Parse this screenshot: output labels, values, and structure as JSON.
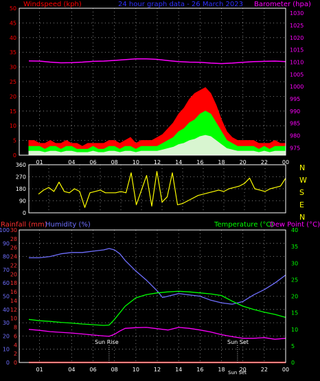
{
  "colors": {
    "wind_speed": "#ff0000",
    "wind_gust": "#00ff00",
    "wind_low": "#d8f5d0",
    "barometer": "#ff00ff",
    "direction": "#ffff00",
    "rainfall": "#ff0000",
    "humidity": "#6f6fff",
    "temperature": "#00ff00",
    "dewpoint": "#ff00ff",
    "rain_axis": "#ff3030",
    "hum_axis": "#6f6fff",
    "temp_axis": "#00ff00",
    "grid": "#a0a0a0",
    "frame": "#ffffff",
    "ticks": "#ffffff"
  },
  "header": {
    "windspeed_label": "Windspeed (kph)",
    "title": "24 hour graph data - 26 March 2023",
    "barometer_label": "Barometer (hpa)"
  },
  "bottom_header": {
    "rainfall_label": "Rainfall (mm)",
    "humidity_label": "Humidity (%)",
    "temperature_label": "Temperature (°C)",
    "dewpoint_label": "Dew Point (°C)"
  },
  "compass": [
    "N",
    "W",
    "S",
    "E",
    "N"
  ],
  "annotations": {
    "sunrise": "Sun Rise",
    "sunset": "Sun Set",
    "sunset_axis": "Sun Set"
  },
  "chart_data": [
    {
      "type": "line",
      "name": "wind-barometer",
      "x_ticks": [
        "01",
        "04",
        "06",
        "08",
        "10",
        "12",
        "14",
        "16",
        "18",
        "20",
        "22",
        "00"
      ],
      "y_left": {
        "ticks": [
          "0",
          "5",
          "10",
          "15",
          "20",
          "25",
          "30",
          "35",
          "40",
          "45",
          "50"
        ],
        "ylim": [
          0,
          50
        ]
      },
      "y_right": {
        "ticks": [
          "975",
          "980",
          "985",
          "990",
          "995",
          "1000",
          "1005",
          "1010",
          "1015",
          "1020",
          "1025",
          "1030"
        ],
        "ylim": [
          972,
          1032
        ]
      },
      "series": [
        {
          "key": "wind_speed",
          "x": [
            0,
            0.5,
            1,
            1.5,
            2,
            2.5,
            3,
            3.5,
            4,
            4.5,
            5,
            5.5,
            6,
            6.5,
            7,
            7.5,
            8,
            8.5,
            9,
            9.5,
            10,
            10.5,
            11,
            11.5,
            12,
            12.5,
            13,
            13.5,
            14,
            14.5,
            15,
            15.5,
            16,
            16.5,
            17,
            17.5,
            18,
            18.5,
            19,
            19.5,
            20,
            20.5,
            21,
            21.5,
            22,
            22.5,
            23,
            23.5,
            24
          ],
          "y": [
            5,
            5,
            4,
            4,
            5,
            4,
            4,
            5,
            4,
            4,
            3,
            4,
            4,
            4,
            4,
            5,
            5,
            4,
            5,
            6,
            4,
            5,
            5,
            5,
            6,
            7,
            9,
            11,
            14,
            16,
            19,
            21,
            22,
            23,
            21,
            17,
            12,
            8,
            6,
            5,
            5,
            5,
            5,
            4,
            4,
            4,
            5,
            4,
            4
          ]
        },
        {
          "key": "wind_gust",
          "x": [
            0,
            0.5,
            1,
            1.5,
            2,
            2.5,
            3,
            3.5,
            4,
            4.5,
            5,
            5.5,
            6,
            6.5,
            7,
            7.5,
            8,
            8.5,
            9,
            9.5,
            10,
            10.5,
            11,
            11.5,
            12,
            12.5,
            13,
            13.5,
            14,
            14.5,
            15,
            15.5,
            16,
            16.5,
            17,
            17.5,
            18,
            18.5,
            19,
            19.5,
            20,
            20.5,
            21,
            21.5,
            22,
            22.5,
            23,
            23.5,
            24
          ],
          "y": [
            3,
            3,
            3,
            2,
            3,
            3,
            2,
            3,
            3,
            2,
            2,
            2,
            3,
            2,
            2,
            3,
            3,
            2,
            3,
            3,
            2,
            3,
            3,
            3,
            3,
            4,
            5,
            6,
            8,
            9,
            11,
            12,
            14,
            15,
            14,
            11,
            8,
            5,
            4,
            3,
            3,
            3,
            3,
            2,
            3,
            2,
            3,
            3,
            3
          ]
        },
        {
          "key": "barometer",
          "x": [
            0,
            1,
            2,
            3,
            4,
            5,
            6,
            7,
            8,
            9,
            10,
            11,
            12,
            13,
            14,
            15,
            16,
            17,
            18,
            19,
            20,
            21,
            22,
            23,
            24
          ],
          "y": [
            1010.5,
            1010.4,
            1010.0,
            1009.7,
            1009.8,
            1010.0,
            1010.3,
            1010.4,
            1010.7,
            1011.0,
            1011.3,
            1011.3,
            1011.1,
            1010.6,
            1010.2,
            1010.0,
            1009.9,
            1009.6,
            1009.4,
            1009.6,
            1009.9,
            1010.2,
            1010.3,
            1010.4,
            1010.2
          ]
        }
      ]
    },
    {
      "type": "line",
      "name": "wind-direction",
      "y_ticks": [
        "0",
        "90",
        "180",
        "270",
        "360"
      ],
      "ylim": [
        0,
        360
      ],
      "series": [
        {
          "key": "direction",
          "x": [
            0,
            0.5,
            1,
            1.5,
            2,
            2.5,
            3,
            3.5,
            4,
            4.5,
            5,
            5.5,
            6,
            6.5,
            7,
            7.5,
            8,
            8.5,
            9,
            9.5,
            10,
            10.5,
            11,
            11.5,
            12,
            12.5,
            13,
            13.5,
            14,
            14.5,
            15,
            15.5,
            16,
            16.5,
            17,
            17.5,
            18,
            18.5,
            19,
            19.5,
            20,
            20.5,
            21,
            21.5,
            22,
            22.5,
            23,
            23.5,
            24
          ],
          "y": [
            140,
            170,
            190,
            160,
            230,
            160,
            150,
            180,
            160,
            40,
            150,
            160,
            170,
            150,
            150,
            150,
            160,
            150,
            300,
            60,
            170,
            280,
            50,
            310,
            80,
            120,
            300,
            60,
            70,
            90,
            110,
            130,
            140,
            150,
            160,
            170,
            160,
            180,
            190,
            200,
            220,
            260,
            180,
            170,
            160,
            180,
            190,
            200,
            260
          ]
        }
      ]
    },
    {
      "type": "line",
      "name": "temp-humidity-rain",
      "x_ticks": [
        "01",
        "04",
        "06",
        "08",
        "10",
        "12",
        "14",
        "16",
        "18",
        "20",
        "22",
        "00"
      ],
      "y_left_humidity": {
        "ticks": [
          "0",
          "10",
          "20",
          "30",
          "40",
          "50",
          "60",
          "70",
          "80",
          "90",
          "100"
        ],
        "ylim": [
          0,
          100
        ]
      },
      "y_left_rain": {
        "ticks": [
          "0",
          "2",
          "4",
          "6",
          "8",
          "10",
          "12",
          "14",
          "16",
          "18",
          "20",
          "22",
          "24",
          "26",
          "28",
          "30"
        ],
        "ylim": [
          0,
          30
        ]
      },
      "y_right_temp": {
        "ticks": [
          "0",
          "5",
          "10",
          "15",
          "20",
          "25",
          "30",
          "35",
          "40"
        ],
        "ylim": [
          0,
          40
        ]
      },
      "series": [
        {
          "key": "humidity",
          "x": [
            0,
            1,
            2,
            3,
            4,
            5,
            6,
            7,
            7.5,
            8,
            8.5,
            9,
            10,
            11,
            12,
            12.5,
            13,
            14,
            15,
            16,
            17,
            18,
            19,
            20,
            21,
            22,
            23,
            24
          ],
          "y": [
            79,
            79,
            80,
            82,
            83,
            83,
            84,
            85,
            86,
            85,
            82,
            77,
            69,
            62,
            54,
            49,
            50,
            52,
            51,
            50,
            47,
            45,
            44,
            46,
            51,
            55,
            60,
            66
          ]
        },
        {
          "key": "temperature",
          "x": [
            0,
            1,
            2,
            3,
            4,
            5,
            6,
            7,
            7.5,
            8,
            8.5,
            9,
            10,
            11,
            12,
            13,
            14,
            15,
            16,
            17,
            18,
            19,
            20,
            21,
            22,
            23,
            24
          ],
          "y": [
            13,
            12.6,
            12.4,
            12.1,
            11.9,
            11.6,
            11.4,
            11.2,
            11.3,
            13,
            15,
            17,
            19.5,
            20.5,
            21,
            21.3,
            21.5,
            21.3,
            21,
            20.7,
            20.2,
            18.5,
            17,
            16,
            15.2,
            14.5,
            13.6
          ]
        },
        {
          "key": "dewpoint",
          "x": [
            0,
            1,
            2,
            3,
            4,
            5,
            6,
            7,
            7.5,
            8,
            8.5,
            9,
            10,
            11,
            12,
            13,
            14,
            15,
            16,
            17,
            18,
            19,
            20,
            21,
            22,
            23,
            24
          ],
          "y": [
            10,
            9.7,
            9.3,
            9.1,
            8.9,
            8.6,
            8.3,
            8.0,
            7.9,
            8.5,
            9.5,
            10.3,
            10.5,
            10.6,
            10.2,
            9.8,
            10.6,
            10.3,
            9.8,
            9.2,
            8.4,
            7.8,
            7.3,
            7.3,
            7.5,
            7.0,
            7.3
          ]
        },
        {
          "key": "rainfall",
          "x": [
            0,
            24
          ],
          "y": [
            0,
            0
          ]
        }
      ],
      "events": [
        {
          "key": "sunrise",
          "x": 7.5
        },
        {
          "key": "sunset",
          "x": 19.5
        }
      ]
    }
  ]
}
